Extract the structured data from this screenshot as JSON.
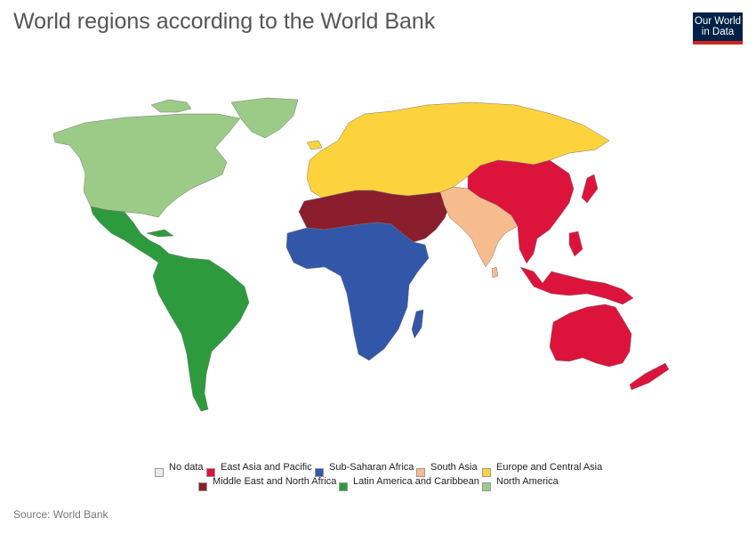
{
  "title": "World regions according to the World Bank",
  "logo": {
    "line1": "Our World",
    "line2": "in Data"
  },
  "source": "Source: World Bank",
  "legend": [
    {
      "label": "No data",
      "color": "#ebebeb"
    },
    {
      "label": "East Asia and Pacific",
      "color": "#dc143c"
    },
    {
      "label": "Sub-Saharan Africa",
      "color": "#3357a8"
    },
    {
      "label": "South Asia",
      "color": "#f7bc8d"
    },
    {
      "label": "Europe and Central Asia",
      "color": "#fdd33d"
    },
    {
      "label": "Middle East and North Africa",
      "color": "#8b1e2c"
    },
    {
      "label": "Latin America and Caribbean",
      "color": "#2e9a3e"
    },
    {
      "label": "North America",
      "color": "#9ccb87"
    }
  ],
  "regions": {
    "north_america": "#9ccb87",
    "latin_america": "#2e9a3e",
    "europe_central_asia": "#fdd33d",
    "mena": "#8b1e2c",
    "sub_saharan_africa": "#3357a8",
    "south_asia": "#f7bc8d",
    "east_asia_pacific": "#dc143c",
    "no_data": "#ebebeb"
  }
}
